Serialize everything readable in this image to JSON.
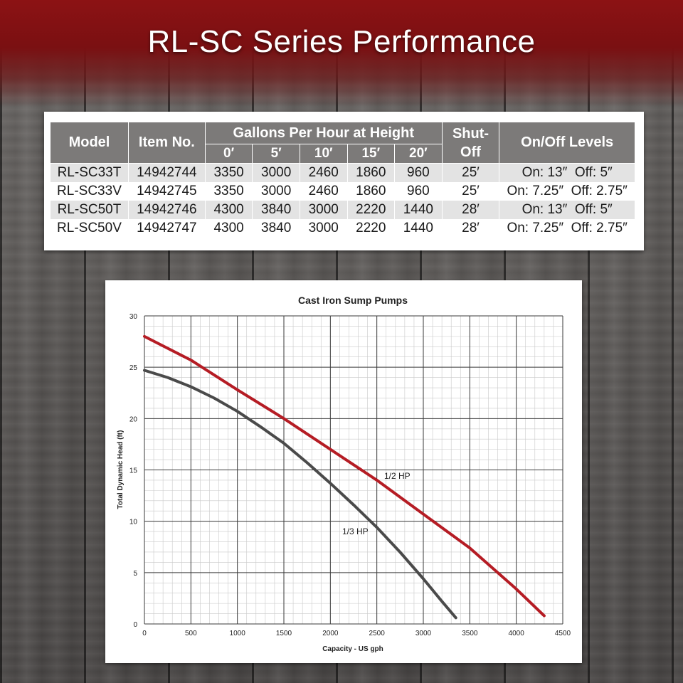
{
  "page": {
    "title": "RL-SC Series Performance",
    "colors": {
      "banner": "#8c1214",
      "half_hp": "#b51c24",
      "third_hp": "#4a4a4a"
    }
  },
  "table": {
    "headers": {
      "model": "Model",
      "item_no": "Item No.",
      "gph_group": "Gallons Per Hour at Height",
      "shutoff": "Shut-Off",
      "levels": "On/Off Levels",
      "heights": [
        "0′",
        "5′",
        "10′",
        "15′",
        "20′"
      ]
    },
    "rows": [
      {
        "model": "RL-SC33T",
        "item": "14942744",
        "gph": [
          "3350",
          "3000",
          "2460",
          "1860",
          "960"
        ],
        "shutoff": "25′",
        "levels": "On: 13″  Off: 5″"
      },
      {
        "model": "RL-SC33V",
        "item": "14942745",
        "gph": [
          "3350",
          "3000",
          "2460",
          "1860",
          "960"
        ],
        "shutoff": "25′",
        "levels": "On: 7.25″  Off: 2.75″"
      },
      {
        "model": "RL-SC50T",
        "item": "14942746",
        "gph": [
          "4300",
          "3840",
          "3000",
          "2220",
          "1440"
        ],
        "shutoff": "28′",
        "levels": "On: 13″  Off: 5″"
      },
      {
        "model": "RL-SC50V",
        "item": "14942747",
        "gph": [
          "4300",
          "3840",
          "3000",
          "2220",
          "1440"
        ],
        "shutoff": "28′",
        "levels": "On: 7.25″  Off: 2.75″"
      }
    ]
  },
  "chart_data": {
    "type": "line",
    "title": "Cast Iron Sump Pumps",
    "xlabel": "Capacity - US gph",
    "ylabel": "Total Dynamic Head (ft)",
    "xlim": [
      0,
      4500
    ],
    "ylim": [
      0,
      30
    ],
    "xticks": [
      0,
      500,
      1000,
      1500,
      2000,
      2500,
      3000,
      3500,
      4000,
      4500
    ],
    "yticks": [
      0,
      5,
      10,
      15,
      20,
      25,
      30
    ],
    "grid": true,
    "series": [
      {
        "name": "1/2 HP",
        "color": "#b51c24",
        "x": [
          0,
          500,
          1000,
          1500,
          2000,
          2500,
          3000,
          3500,
          4000,
          4300
        ],
        "y": [
          28,
          25.7,
          22.8,
          20.0,
          17.0,
          14.0,
          10.7,
          7.4,
          3.4,
          0.8
        ]
      },
      {
        "name": "1/3 HP",
        "color": "#4a4a4a",
        "x": [
          0,
          250,
          500,
          750,
          1000,
          1250,
          1500,
          1750,
          2000,
          2250,
          2500,
          2750,
          3000,
          3200,
          3350
        ],
        "y": [
          24.7,
          24.0,
          23.1,
          22.0,
          20.7,
          19.2,
          17.6,
          15.7,
          13.7,
          11.6,
          9.4,
          7.0,
          4.4,
          2.2,
          0.6
        ]
      }
    ]
  }
}
